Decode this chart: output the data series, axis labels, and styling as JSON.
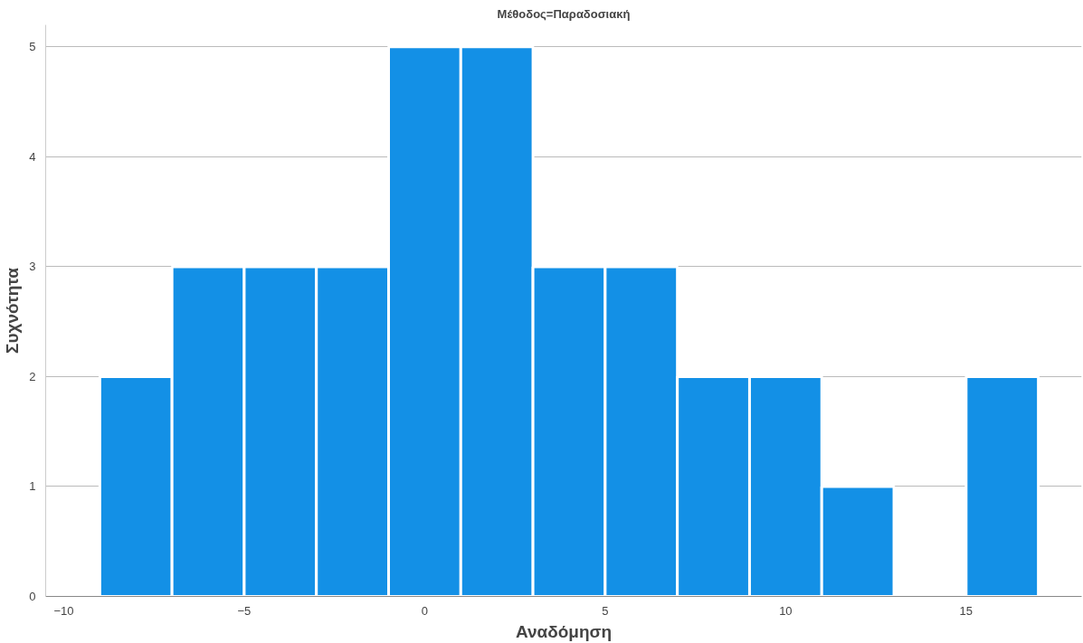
{
  "chart_data": {
    "type": "histogram",
    "title": "Μέθοδος=Παραδοσιακή",
    "xlabel": "Αναδόμηση",
    "ylabel": "Συχνότητα",
    "bins": [
      -9,
      -7,
      -5,
      -3,
      -1,
      1,
      3,
      5,
      7,
      9,
      11,
      13,
      15,
      17
    ],
    "values": [
      2,
      3,
      3,
      3,
      5,
      5,
      3,
      3,
      2,
      2,
      1,
      0,
      2
    ],
    "color": "#1390e6",
    "xlim": [
      -10.5,
      18.2
    ],
    "xticks": [
      -10,
      -5,
      0,
      5,
      10,
      15
    ],
    "ylim": [
      0,
      5.2
    ],
    "yticks": [
      0,
      1,
      2,
      3,
      4,
      5
    ],
    "grid": "y"
  }
}
